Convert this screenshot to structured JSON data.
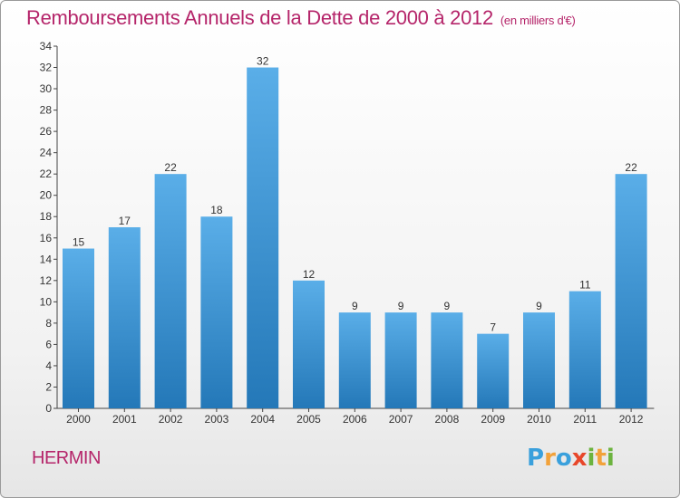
{
  "header": {
    "title": "Remboursements Annuels de la Dette de 2000 à 2012",
    "unit": "(en milliers d'€)"
  },
  "footer": {
    "place": "HERMIN",
    "logo": "Proxiti"
  },
  "colors": {
    "title": "#b5256a",
    "bar_light": "#5aaee8",
    "bar_dark": "#2478b8"
  },
  "chart_data": {
    "type": "bar",
    "title": "Remboursements Annuels de la Dette de 2000 à 2012",
    "xlabel": "",
    "ylabel": "",
    "categories": [
      "2000",
      "2001",
      "2002",
      "2003",
      "2004",
      "2005",
      "2006",
      "2007",
      "2008",
      "2009",
      "2010",
      "2011",
      "2012"
    ],
    "values": [
      15,
      17,
      22,
      18,
      32,
      12,
      9,
      9,
      9,
      7,
      9,
      11,
      22
    ],
    "ylim": [
      0,
      34
    ],
    "yticks": [
      0,
      2,
      4,
      6,
      8,
      10,
      12,
      14,
      16,
      18,
      20,
      22,
      24,
      26,
      28,
      30,
      32,
      34
    ],
    "grid": false,
    "legend": "none"
  }
}
